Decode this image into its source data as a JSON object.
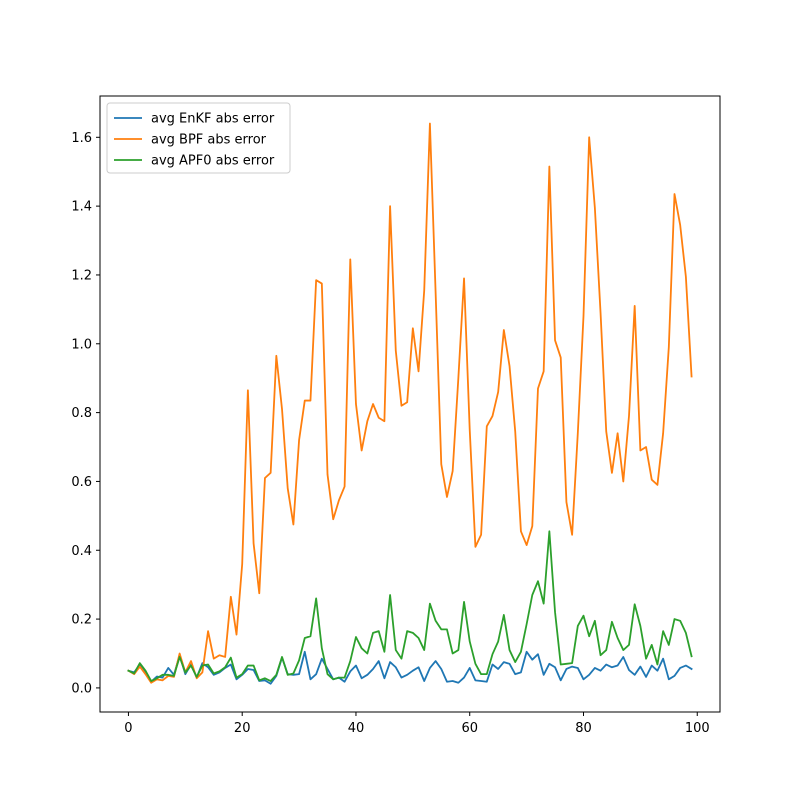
{
  "chart_data": {
    "type": "line",
    "title": "",
    "xlabel": "",
    "ylabel": "",
    "xlim": [
      -5,
      104
    ],
    "ylim": [
      -0.07,
      1.72
    ],
    "x_ticks": [
      0,
      20,
      40,
      60,
      80,
      100
    ],
    "y_ticks": [
      0.0,
      0.2,
      0.4,
      0.6,
      0.8,
      1.0,
      1.2,
      1.4,
      1.6
    ],
    "x_tick_labels": [
      "0",
      "20",
      "40",
      "60",
      "80",
      "100"
    ],
    "y_tick_labels": [
      "0.0",
      "0.2",
      "0.4",
      "0.6",
      "0.8",
      "1.0",
      "1.2",
      "1.4",
      "1.6"
    ],
    "grid": false,
    "legend_position": "top-left",
    "x": [
      0,
      1,
      2,
      3,
      4,
      5,
      6,
      7,
      8,
      9,
      10,
      11,
      12,
      13,
      14,
      15,
      16,
      17,
      18,
      19,
      20,
      21,
      22,
      23,
      24,
      25,
      26,
      27,
      28,
      29,
      30,
      31,
      32,
      33,
      34,
      35,
      36,
      37,
      38,
      39,
      40,
      41,
      42,
      43,
      44,
      45,
      46,
      47,
      48,
      49,
      50,
      51,
      52,
      53,
      54,
      55,
      56,
      57,
      58,
      59,
      60,
      61,
      62,
      63,
      64,
      65,
      66,
      67,
      68,
      69,
      70,
      71,
      72,
      73,
      74,
      75,
      76,
      77,
      78,
      79,
      80,
      81,
      82,
      83,
      84,
      85,
      86,
      87,
      88,
      89,
      90,
      91,
      92,
      93,
      94,
      95,
      96,
      97,
      98,
      99
    ],
    "series": [
      {
        "name": "avg EnKF abs error",
        "color": "#1f77b4",
        "values": [
          0.05,
          0.045,
          0.068,
          0.045,
          0.018,
          0.033,
          0.03,
          0.058,
          0.038,
          0.095,
          0.04,
          0.068,
          0.03,
          0.072,
          0.06,
          0.038,
          0.045,
          0.058,
          0.068,
          0.025,
          0.038,
          0.055,
          0.052,
          0.02,
          0.022,
          0.012,
          0.035,
          0.088,
          0.04,
          0.038,
          0.04,
          0.105,
          0.025,
          0.04,
          0.085,
          0.055,
          0.025,
          0.03,
          0.018,
          0.048,
          0.065,
          0.028,
          0.038,
          0.055,
          0.078,
          0.028,
          0.075,
          0.06,
          0.03,
          0.038,
          0.05,
          0.06,
          0.02,
          0.058,
          0.078,
          0.055,
          0.018,
          0.02,
          0.015,
          0.03,
          0.058,
          0.022,
          0.02,
          0.018,
          0.068,
          0.055,
          0.075,
          0.07,
          0.04,
          0.045,
          0.105,
          0.082,
          0.098,
          0.038,
          0.07,
          0.06,
          0.022,
          0.055,
          0.062,
          0.058,
          0.025,
          0.038,
          0.058,
          0.05,
          0.068,
          0.06,
          0.065,
          0.09,
          0.052,
          0.038,
          0.062,
          0.032,
          0.065,
          0.05,
          0.085,
          0.025,
          0.035,
          0.058,
          0.065,
          0.055
        ]
      },
      {
        "name": "avg BPF abs error",
        "color": "#ff7f0e",
        "values": [
          0.05,
          0.04,
          0.062,
          0.04,
          0.015,
          0.025,
          0.022,
          0.035,
          0.032,
          0.1,
          0.045,
          0.078,
          0.028,
          0.045,
          0.165,
          0.085,
          0.095,
          0.09,
          0.265,
          0.155,
          0.36,
          0.865,
          0.42,
          0.275,
          0.61,
          0.625,
          0.965,
          0.81,
          0.58,
          0.475,
          0.72,
          0.835,
          0.835,
          1.185,
          1.175,
          0.62,
          0.49,
          0.545,
          0.585,
          1.245,
          0.825,
          0.69,
          0.775,
          0.825,
          0.785,
          0.775,
          1.4,
          0.98,
          0.82,
          0.83,
          1.045,
          0.92,
          1.155,
          1.64,
          1.15,
          0.65,
          0.555,
          0.63,
          0.9,
          1.19,
          0.75,
          0.41,
          0.445,
          0.76,
          0.79,
          0.86,
          1.04,
          0.935,
          0.745,
          0.455,
          0.415,
          0.47,
          0.87,
          0.92,
          1.515,
          1.01,
          0.96,
          0.54,
          0.445,
          0.74,
          1.08,
          1.6,
          1.395,
          1.09,
          0.745,
          0.625,
          0.74,
          0.6,
          0.79,
          1.11,
          0.69,
          0.7,
          0.605,
          0.59,
          0.74,
          0.99,
          1.435,
          1.345,
          1.195,
          0.905
        ]
      },
      {
        "name": "avg APF0 abs error",
        "color": "#2ca02c",
        "values": [
          0.05,
          0.042,
          0.072,
          0.05,
          0.02,
          0.028,
          0.038,
          0.038,
          0.035,
          0.09,
          0.045,
          0.065,
          0.032,
          0.065,
          0.068,
          0.042,
          0.048,
          0.06,
          0.088,
          0.03,
          0.04,
          0.065,
          0.065,
          0.022,
          0.028,
          0.02,
          0.038,
          0.09,
          0.038,
          0.042,
          0.08,
          0.145,
          0.15,
          0.26,
          0.115,
          0.04,
          0.025,
          0.03,
          0.03,
          0.078,
          0.148,
          0.115,
          0.1,
          0.16,
          0.165,
          0.105,
          0.27,
          0.11,
          0.085,
          0.165,
          0.16,
          0.145,
          0.11,
          0.245,
          0.195,
          0.17,
          0.17,
          0.1,
          0.11,
          0.25,
          0.135,
          0.07,
          0.04,
          0.04,
          0.098,
          0.135,
          0.212,
          0.11,
          0.075,
          0.105,
          0.185,
          0.27,
          0.31,
          0.245,
          0.455,
          0.22,
          0.068,
          0.07,
          0.072,
          0.18,
          0.21,
          0.15,
          0.195,
          0.095,
          0.11,
          0.192,
          0.145,
          0.11,
          0.125,
          0.243,
          0.18,
          0.085,
          0.125,
          0.068,
          0.165,
          0.125,
          0.2,
          0.195,
          0.16,
          0.092
        ]
      }
    ]
  }
}
